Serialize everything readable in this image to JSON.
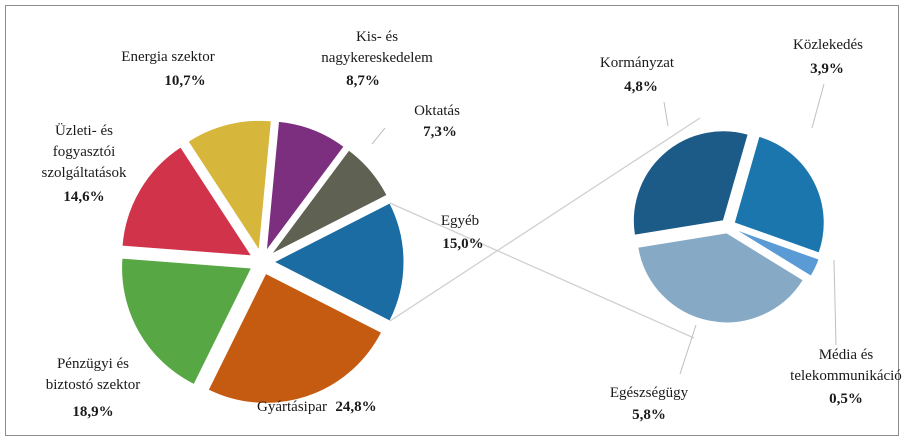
{
  "chart_data": {
    "type": "pie-of-pie",
    "categories": [
      "Gyártásipar",
      "Pénzügyi és biztostó szektor",
      "Üzleti- és fogyasztói szolgáltatások",
      "Energia szektor",
      "Kis- és nagykereskedelem",
      "Oktatás",
      "Egyéb"
    ],
    "values": [
      24.8,
      18.9,
      14.6,
      10.7,
      8.7,
      7.3,
      15.0
    ],
    "value_labels": [
      "24,8%",
      "18,9%",
      "14,6%",
      "10,7%",
      "8,7%",
      "7,3%",
      "15,0%"
    ],
    "colors": [
      "#c55a11",
      "#57a844",
      "#d0334a",
      "#d7b63c",
      "#7c2e7f",
      "#5f6253",
      "#1a6ca3"
    ],
    "secondary": {
      "categories": [
        "Közlekedés",
        "Média és telekommunikáció",
        "Egészségügy",
        "Kormányzat"
      ],
      "values": [
        3.9,
        0.5,
        5.8,
        4.8
      ],
      "value_labels": [
        "3,9%",
        "0,5%",
        "5,8%",
        "4,8%"
      ],
      "colors": [
        "#1c76ae",
        "#5b9bd5",
        "#86aac6",
        "#1c5a87"
      ]
    }
  }
}
